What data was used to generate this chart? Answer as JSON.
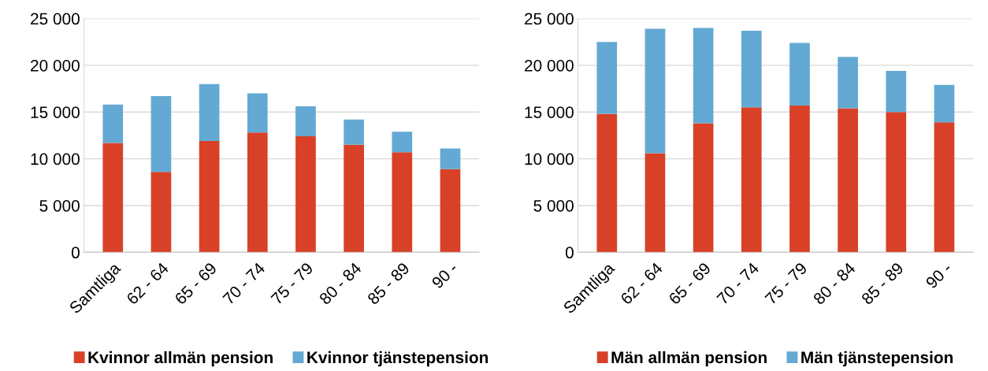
{
  "chart_data": [
    {
      "type": "bar",
      "stacked": true,
      "categories": [
        "Samtliga",
        "62 - 64",
        "65 - 69",
        "70 - 74",
        "75 - 79",
        "80 - 84",
        "85 - 89",
        "90 -"
      ],
      "series": [
        {
          "name": "Kvinnor allmän pension",
          "color": "#d84127",
          "values": [
            11700,
            8600,
            11900,
            12800,
            12400,
            11500,
            10700,
            8900
          ]
        },
        {
          "name": "Kvinnor tjänstepension",
          "color": "#63a9d4",
          "values": [
            4100,
            8100,
            6100,
            4200,
            3200,
            2700,
            2200,
            2200
          ]
        }
      ],
      "ylim": [
        0,
        25000
      ],
      "yticks": [
        {
          "value": 0,
          "label": "0"
        },
        {
          "value": 5000,
          "label": "5 000"
        },
        {
          "value": 10000,
          "label": "10 000"
        },
        {
          "value": 15000,
          "label": "15 000"
        },
        {
          "value": 20000,
          "label": "20 000"
        },
        {
          "value": 25000,
          "label": "25 000"
        }
      ],
      "grid": "y",
      "legend": "bottom"
    },
    {
      "type": "bar",
      "stacked": true,
      "categories": [
        "Samtliga",
        "62 - 64",
        "65 - 69",
        "70 - 74",
        "75 - 79",
        "80 - 84",
        "85 - 89",
        "90 -"
      ],
      "series": [
        {
          "name": "Män allmän pension",
          "color": "#d84127",
          "values": [
            14800,
            10600,
            13800,
            15500,
            15700,
            15400,
            15000,
            13900
          ]
        },
        {
          "name": "Män tjänstepension",
          "color": "#63a9d4",
          "values": [
            7700,
            13300,
            10200,
            8200,
            6700,
            5500,
            4400,
            4000
          ]
        }
      ],
      "ylim": [
        0,
        25000
      ],
      "yticks": [
        {
          "value": 0,
          "label": "0"
        },
        {
          "value": 5000,
          "label": "5 000"
        },
        {
          "value": 10000,
          "label": "10 000"
        },
        {
          "value": 15000,
          "label": "15 000"
        },
        {
          "value": 20000,
          "label": "20 000"
        },
        {
          "value": 25000,
          "label": "25 000"
        }
      ],
      "grid": "y",
      "legend": "bottom"
    }
  ]
}
